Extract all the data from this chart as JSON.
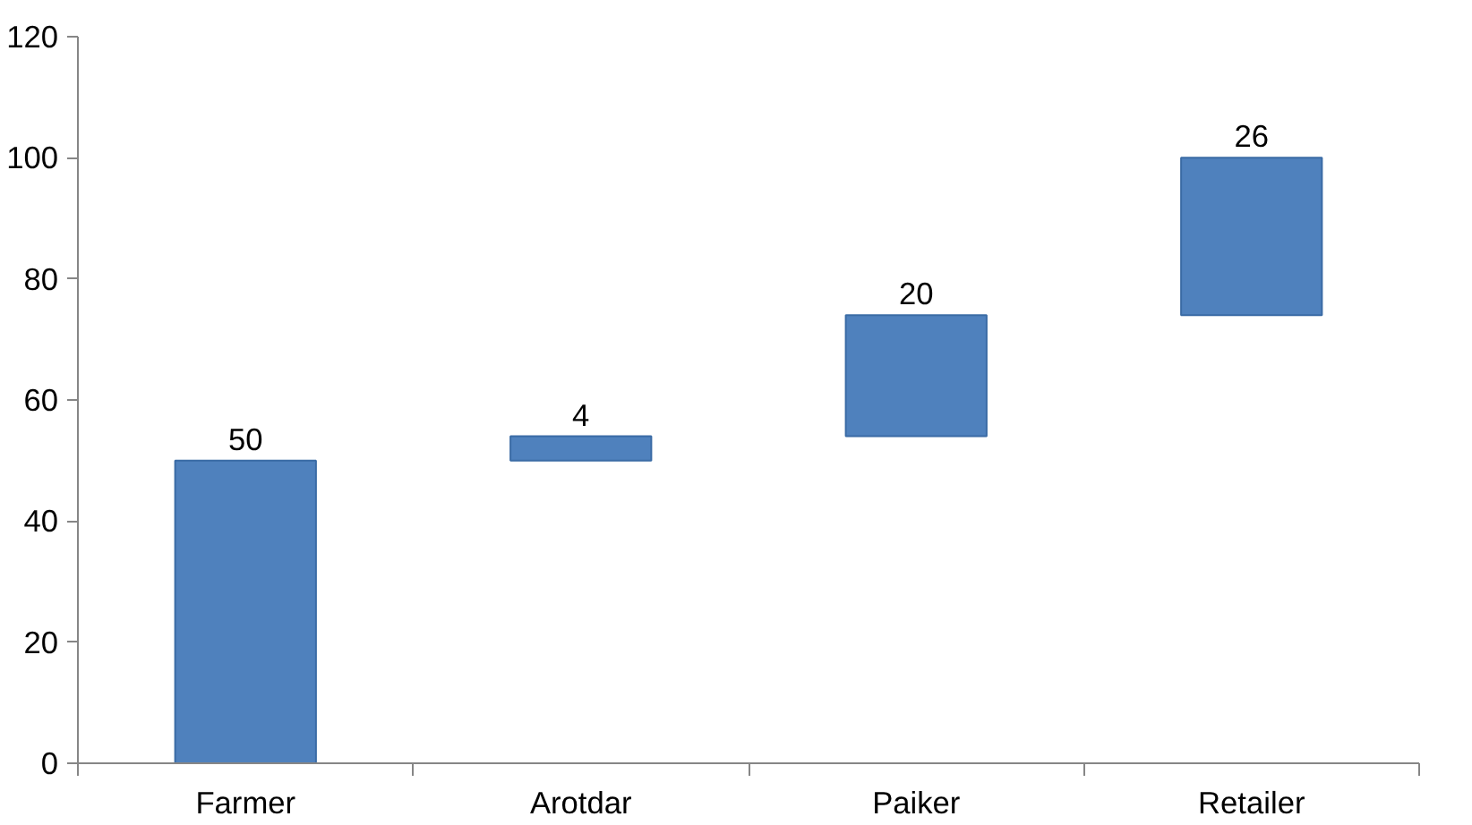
{
  "chart_data": {
    "type": "bar",
    "categories": [
      "Farmer",
      "Arotdar",
      "Paiker",
      "Retailer"
    ],
    "values": [
      50,
      4,
      20,
      26
    ],
    "base": [
      0,
      50,
      54,
      74
    ],
    "color": "#4f81bd",
    "ylim": [
      0,
      120
    ],
    "yticks": [
      0,
      20,
      40,
      60,
      80,
      100,
      120
    ],
    "data_labels": true,
    "grid": false
  }
}
